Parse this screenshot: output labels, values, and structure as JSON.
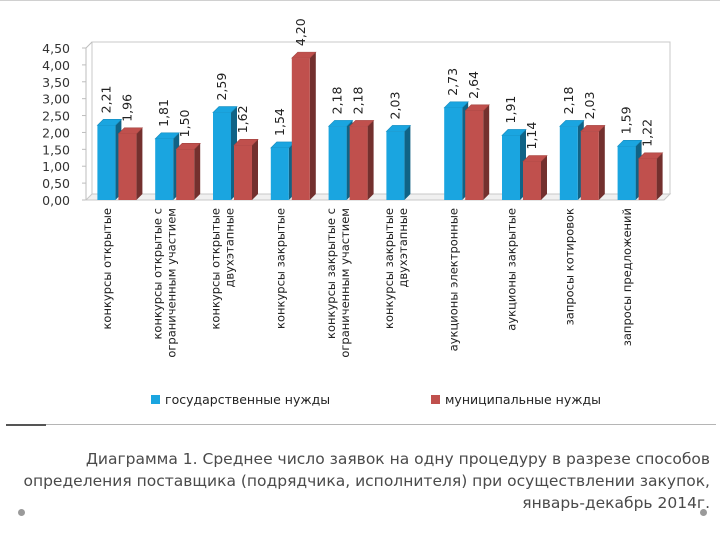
{
  "chart_data": {
    "type": "bar",
    "categories": [
      [
        "конкурсы открытые"
      ],
      [
        "конкурсы открытые с",
        "ограниченным участием"
      ],
      [
        "конкурсы открытые",
        "двухэтапные"
      ],
      [
        "конкурсы закрытые"
      ],
      [
        "конкурсы закрытые с",
        "ограниченным участием"
      ],
      [
        "конкурсы закрытые",
        "двухэтапные"
      ],
      [
        "аукционы электронные"
      ],
      [
        "аукционы закрытые"
      ],
      [
        "запросы котировок"
      ],
      [
        "запросы предложений"
      ]
    ],
    "series": [
      {
        "name": "государственные нужды",
        "color": "#1aa5e0",
        "values": [
          2.21,
          1.81,
          2.59,
          1.54,
          2.18,
          2.03,
          2.73,
          1.91,
          2.18,
          1.59
        ],
        "labels": [
          "2,21",
          "1,81",
          "2,59",
          "1,54",
          "2,18",
          "2,03",
          "2,73",
          "1,91",
          "2,18",
          "1,59"
        ]
      },
      {
        "name": "муниципальные нужды",
        "color": "#c0504d",
        "values": [
          1.96,
          1.5,
          1.62,
          4.2,
          2.18,
          null,
          2.64,
          1.14,
          2.03,
          1.22
        ],
        "labels": [
          "1,96",
          "1,50",
          "1,62",
          "4,20",
          "2,18",
          "",
          "2,64",
          "1,14",
          "2,03",
          "1,22"
        ]
      }
    ],
    "ylim": [
      0,
      4.5
    ],
    "yticks": [
      "0,00",
      "0,50",
      "1,00",
      "1,50",
      "2,00",
      "2,50",
      "3,00",
      "3,50",
      "4,00",
      "4,50"
    ],
    "legend_position": "bottom",
    "grid": false
  },
  "caption": {
    "line1": "Диаграмма 1. Среднее число заявок на одну процедуру в разрезе способов",
    "line2": "определения поставщика (подрядчика, исполнителя) при осуществлении закупок,",
    "line3": "январь-декабрь 2014г."
  }
}
